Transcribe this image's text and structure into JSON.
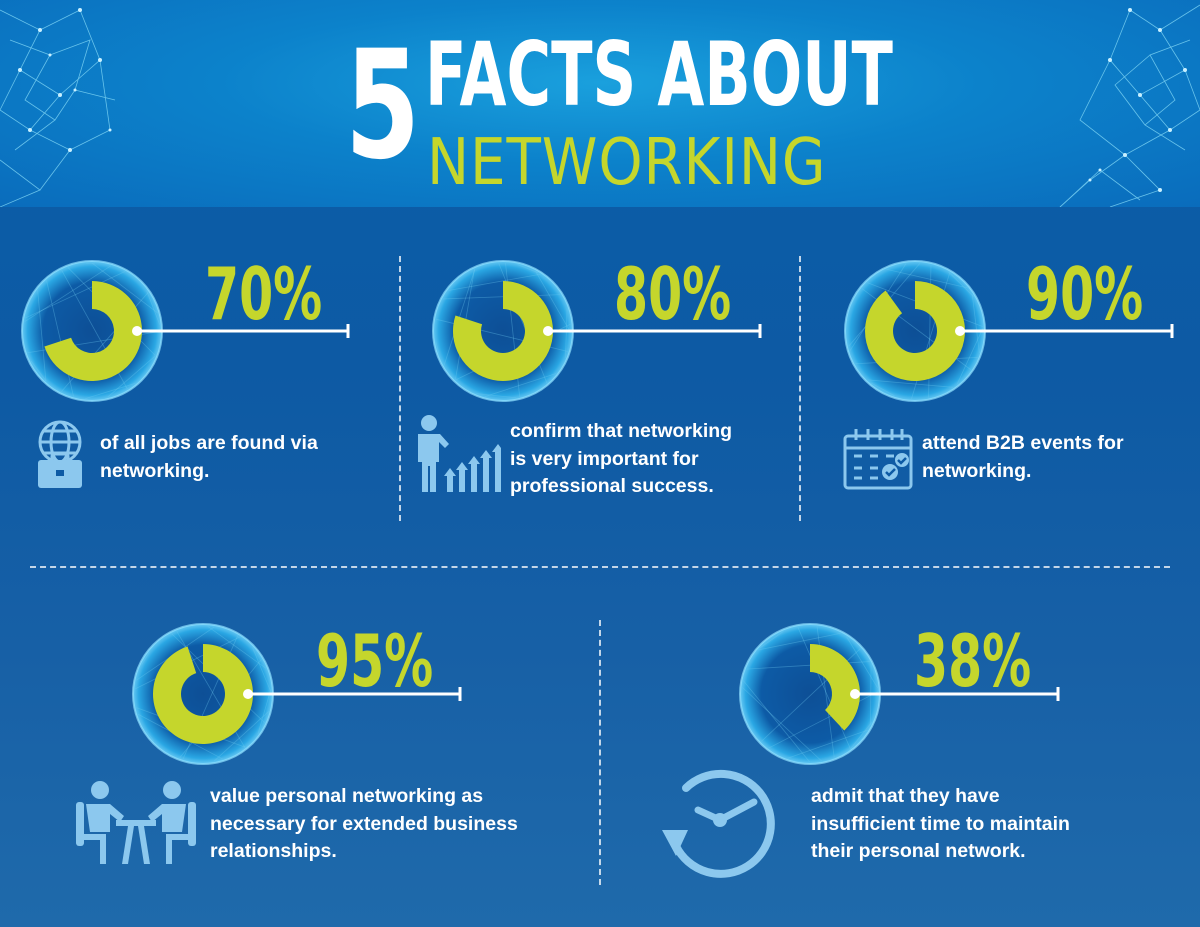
{
  "title": {
    "number": "5",
    "line1": "FACTS ABOUT",
    "line2": "NETWORKING"
  },
  "colors": {
    "accent": "#c5d62c",
    "background": "#0d5aa4",
    "header": "#0c82cb",
    "icon": "#8cc8ee"
  },
  "facts": [
    {
      "percent": "70%",
      "value": 0.7,
      "text": "of all jobs are found via\nnetworking.",
      "icon": "globe-briefcase-icon"
    },
    {
      "percent": "80%",
      "value": 0.8,
      "text": "confirm that networking\nis very important for\nprofessional success.",
      "icon": "person-growth-arrows-icon"
    },
    {
      "percent": "90%",
      "value": 0.9,
      "text": "attend B2B events for\nnetworking.",
      "icon": "calendar-check-icon"
    },
    {
      "percent": "95%",
      "value": 0.95,
      "text": "value personal networking as\nnecessary for extended business\nrelationships.",
      "icon": "meeting-people-icon"
    },
    {
      "percent": "38%",
      "value": 0.38,
      "text": "admit that they have\ninsufficient time to maintain\ntheir personal network.",
      "icon": "clock-icon"
    }
  ]
}
